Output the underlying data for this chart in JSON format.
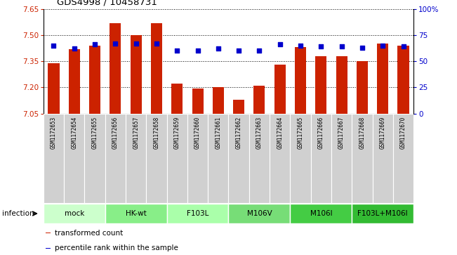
{
  "title": "GDS4998 / 10458731",
  "samples": [
    "GSM1172653",
    "GSM1172654",
    "GSM1172655",
    "GSM1172656",
    "GSM1172657",
    "GSM1172658",
    "GSM1172659",
    "GSM1172660",
    "GSM1172661",
    "GSM1172662",
    "GSM1172663",
    "GSM1172664",
    "GSM1172665",
    "GSM1172666",
    "GSM1172667",
    "GSM1172668",
    "GSM1172669",
    "GSM1172670"
  ],
  "bar_heights": [
    7.34,
    7.42,
    7.44,
    7.57,
    7.5,
    7.57,
    7.22,
    7.195,
    7.2,
    7.13,
    7.21,
    7.33,
    7.43,
    7.38,
    7.38,
    7.35,
    7.45,
    7.44
  ],
  "percentile_ranks": [
    65,
    62,
    66,
    67,
    67,
    67,
    60,
    60,
    62,
    60,
    60,
    66,
    65,
    64,
    64,
    63,
    65,
    64
  ],
  "groups": [
    {
      "label": "mock",
      "start": 0,
      "end": 3,
      "color": "#ccffcc"
    },
    {
      "label": "HK-wt",
      "start": 3,
      "end": 6,
      "color": "#88ee88"
    },
    {
      "label": "F103L",
      "start": 6,
      "end": 9,
      "color": "#aaffaa"
    },
    {
      "label": "M106V",
      "start": 9,
      "end": 12,
      "color": "#77dd77"
    },
    {
      "label": "M106I",
      "start": 12,
      "end": 15,
      "color": "#44cc44"
    },
    {
      "label": "F103L+M106I",
      "start": 15,
      "end": 18,
      "color": "#33bb33"
    }
  ],
  "ylim_left": [
    7.05,
    7.65
  ],
  "ylim_right": [
    0,
    100
  ],
  "yticks_left": [
    7.05,
    7.2,
    7.35,
    7.5,
    7.65
  ],
  "yticks_right": [
    0,
    25,
    50,
    75,
    100
  ],
  "bar_color": "#cc2200",
  "dot_color": "#0000cc",
  "sample_box_color": "#d0d0d0",
  "infection_label": "infection",
  "legend_items": [
    {
      "color": "#cc2200",
      "label": "transformed count"
    },
    {
      "color": "#0000cc",
      "label": "percentile rank within the sample"
    }
  ]
}
